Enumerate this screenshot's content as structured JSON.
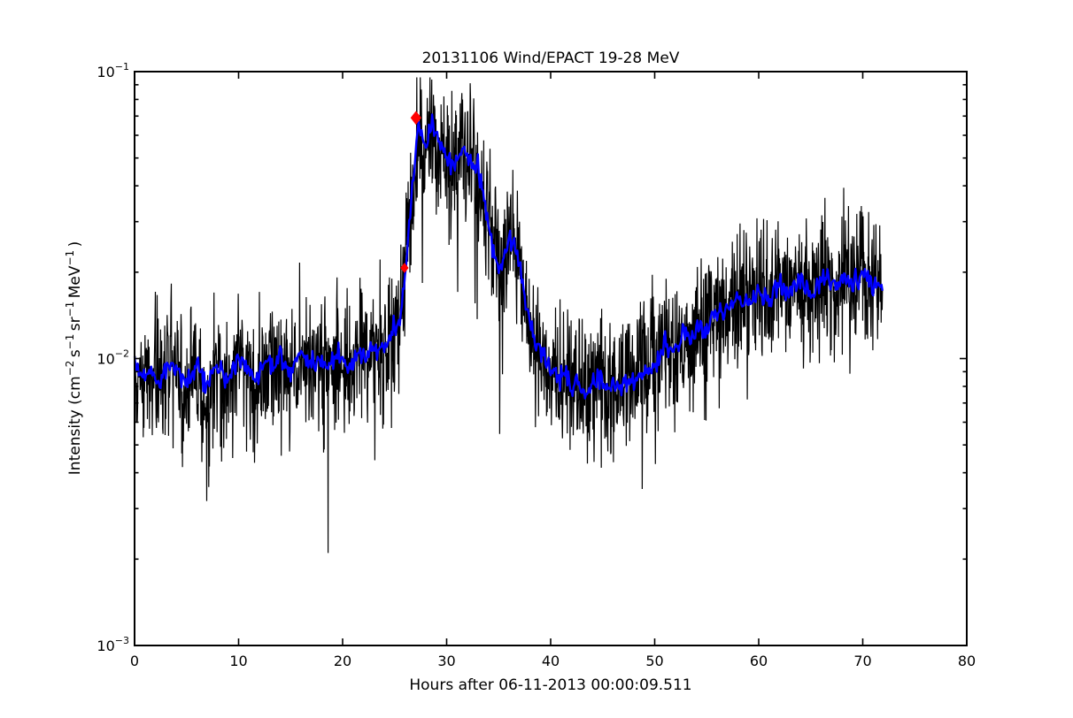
{
  "figure": {
    "background": "#ffffff"
  },
  "chart_data": {
    "type": "line",
    "title": "20131106 Wind/EPACT 19-28 MeV",
    "xlabel": "Hours after 06-11-2013 00:00:09.511",
    "ylabel_plain": "Intensity (cm⁻²s⁻¹sr⁻¹MeV⁻¹)",
    "ylabel_segments": [
      {
        "t": "Intensity (cm"
      },
      {
        "t": "−2",
        "sup": true
      },
      {
        "t": " s"
      },
      {
        "t": "−1",
        "sup": true
      },
      {
        "t": " sr"
      },
      {
        "t": "−1",
        "sup": true
      },
      {
        "t": " MeV"
      },
      {
        "t": "−1",
        "sup": true
      },
      {
        "t": " )"
      }
    ],
    "xscale": "linear",
    "yscale": "log",
    "xlim": [
      0,
      80
    ],
    "ylim": [
      0.001,
      0.1
    ],
    "xticks": [
      0,
      10,
      20,
      30,
      40,
      50,
      60,
      70,
      80
    ],
    "yticks": [
      {
        "base": "10",
        "exp": "−1",
        "value": 0.1
      },
      {
        "base": "10",
        "exp": "−2",
        "value": 0.01
      },
      {
        "base": "10",
        "exp": "−3",
        "value": 0.001
      }
    ],
    "grid": false,
    "legend": "none",
    "data_hours_range": [
      0,
      71.9
    ],
    "samples_per_hour_raw": 30,
    "samples_per_hour_smoothed": 10,
    "series": [
      {
        "name": "raw",
        "color": "#000000",
        "linewidth": 1.2,
        "noise_sigma_decades": 0.115,
        "downspike_probability": 0.01,
        "downspike_max_decades": 0.45,
        "upspike_probability": 0.005,
        "upspike_max_decades": 0.15,
        "seed": 1337
      },
      {
        "name": "smoothed",
        "color": "#0000ff",
        "linewidth": 2.4,
        "noise_sigma_decades": 0.02,
        "seed": 2024
      }
    ],
    "envelope_points": [
      [
        0,
        0.0095
      ],
      [
        0.5,
        0.009
      ],
      [
        1,
        0.0086
      ],
      [
        1.5,
        0.0092
      ],
      [
        2,
        0.0088
      ],
      [
        2.5,
        0.0082
      ],
      [
        3,
        0.0092
      ],
      [
        3.5,
        0.0096
      ],
      [
        4,
        0.009
      ],
      [
        4.5,
        0.0085
      ],
      [
        5,
        0.0083
      ],
      [
        5.5,
        0.0089
      ],
      [
        6,
        0.0093
      ],
      [
        6.5,
        0.0085
      ],
      [
        7,
        0.008
      ],
      [
        7.5,
        0.0088
      ],
      [
        8,
        0.0096
      ],
      [
        8.5,
        0.009
      ],
      [
        9,
        0.0086
      ],
      [
        9.5,
        0.0092
      ],
      [
        10,
        0.01
      ],
      [
        10.5,
        0.0094
      ],
      [
        11,
        0.009
      ],
      [
        11.5,
        0.0085
      ],
      [
        12,
        0.009
      ],
      [
        12.5,
        0.0096
      ],
      [
        13,
        0.01
      ],
      [
        13.5,
        0.0094
      ],
      [
        14,
        0.0102
      ],
      [
        14.5,
        0.0096
      ],
      [
        15,
        0.009
      ],
      [
        15.5,
        0.0096
      ],
      [
        16,
        0.0104
      ],
      [
        16.5,
        0.01
      ],
      [
        17,
        0.0095
      ],
      [
        17.5,
        0.0102
      ],
      [
        18,
        0.0098
      ],
      [
        18.5,
        0.0093
      ],
      [
        19,
        0.01
      ],
      [
        19.5,
        0.0106
      ],
      [
        20,
        0.01
      ],
      [
        20.5,
        0.0095
      ],
      [
        21,
        0.0102
      ],
      [
        21.5,
        0.0108
      ],
      [
        22,
        0.0102
      ],
      [
        22.5,
        0.0107
      ],
      [
        23,
        0.0112
      ],
      [
        23.5,
        0.0106
      ],
      [
        24,
        0.0112
      ],
      [
        24.5,
        0.0118
      ],
      [
        25,
        0.0124
      ],
      [
        25.5,
        0.0135
      ],
      [
        26,
        0.02
      ],
      [
        26.5,
        0.033
      ],
      [
        27,
        0.052
      ],
      [
        27.3,
        0.064
      ],
      [
        27.6,
        0.06
      ],
      [
        28,
        0.055
      ],
      [
        28.4,
        0.063
      ],
      [
        28.8,
        0.066
      ],
      [
        29.2,
        0.06
      ],
      [
        29.6,
        0.0545
      ],
      [
        30,
        0.05
      ],
      [
        30.5,
        0.047
      ],
      [
        31,
        0.051
      ],
      [
        31.5,
        0.0545
      ],
      [
        32,
        0.052
      ],
      [
        32.5,
        0.048
      ],
      [
        33,
        0.044
      ],
      [
        33.5,
        0.038
      ],
      [
        34,
        0.03
      ],
      [
        34.5,
        0.024
      ],
      [
        35,
        0.0205
      ],
      [
        35.5,
        0.0215
      ],
      [
        36,
        0.025
      ],
      [
        36.5,
        0.026
      ],
      [
        37,
        0.0215
      ],
      [
        37.5,
        0.016
      ],
      [
        38,
        0.013
      ],
      [
        38.5,
        0.0115
      ],
      [
        39,
        0.0105
      ],
      [
        39.5,
        0.0098
      ],
      [
        40,
        0.0092
      ],
      [
        40.5,
        0.0088
      ],
      [
        41,
        0.0084
      ],
      [
        41.5,
        0.0086
      ],
      [
        42,
        0.008
      ],
      [
        42.5,
        0.0083
      ],
      [
        43,
        0.0078
      ],
      [
        43.5,
        0.0074
      ],
      [
        44,
        0.008
      ],
      [
        44.5,
        0.0086
      ],
      [
        45,
        0.0081
      ],
      [
        45.5,
        0.0077
      ],
      [
        46,
        0.0082
      ],
      [
        46.5,
        0.0078
      ],
      [
        47,
        0.0084
      ],
      [
        47.5,
        0.0079
      ],
      [
        48,
        0.0083
      ],
      [
        48.5,
        0.009
      ],
      [
        49,
        0.0094
      ],
      [
        49.5,
        0.009
      ],
      [
        50,
        0.0096
      ],
      [
        50.5,
        0.0103
      ],
      [
        51,
        0.011
      ],
      [
        51.5,
        0.0105
      ],
      [
        52,
        0.0112
      ],
      [
        52.5,
        0.0118
      ],
      [
        53,
        0.0124
      ],
      [
        53.5,
        0.012
      ],
      [
        54,
        0.0126
      ],
      [
        54.5,
        0.0122
      ],
      [
        55,
        0.013
      ],
      [
        55.5,
        0.0136
      ],
      [
        56,
        0.0142
      ],
      [
        56.5,
        0.0147
      ],
      [
        57,
        0.0152
      ],
      [
        57.5,
        0.0157
      ],
      [
        58,
        0.0162
      ],
      [
        58.5,
        0.0155
      ],
      [
        59,
        0.0162
      ],
      [
        59.5,
        0.0168
      ],
      [
        60,
        0.0172
      ],
      [
        60.5,
        0.0165
      ],
      [
        61,
        0.016
      ],
      [
        61.5,
        0.017
      ],
      [
        62,
        0.0176
      ],
      [
        62.5,
        0.017
      ],
      [
        63,
        0.0176
      ],
      [
        63.5,
        0.0182
      ],
      [
        64,
        0.0186
      ],
      [
        64.5,
        0.018
      ],
      [
        65,
        0.0174
      ],
      [
        65.5,
        0.0181
      ],
      [
        66,
        0.0187
      ],
      [
        66.5,
        0.0191
      ],
      [
        67,
        0.0185
      ],
      [
        67.5,
        0.0179
      ],
      [
        68,
        0.0186
      ],
      [
        68.5,
        0.0191
      ],
      [
        69,
        0.0186
      ],
      [
        69.5,
        0.0191
      ],
      [
        70,
        0.0196
      ],
      [
        70.5,
        0.019
      ],
      [
        71,
        0.0184
      ],
      [
        71.5,
        0.0179
      ],
      [
        71.9,
        0.017
      ]
    ],
    "markers": [
      {
        "name": "onset",
        "shape": "diamond",
        "color": "#ff0000",
        "x": 25.95,
        "y": 0.0207,
        "height": 10,
        "width": 8
      },
      {
        "name": "peak",
        "shape": "diamond",
        "color": "#ff0000",
        "x": 27.05,
        "y": 0.069,
        "height": 14,
        "width": 11
      }
    ]
  }
}
